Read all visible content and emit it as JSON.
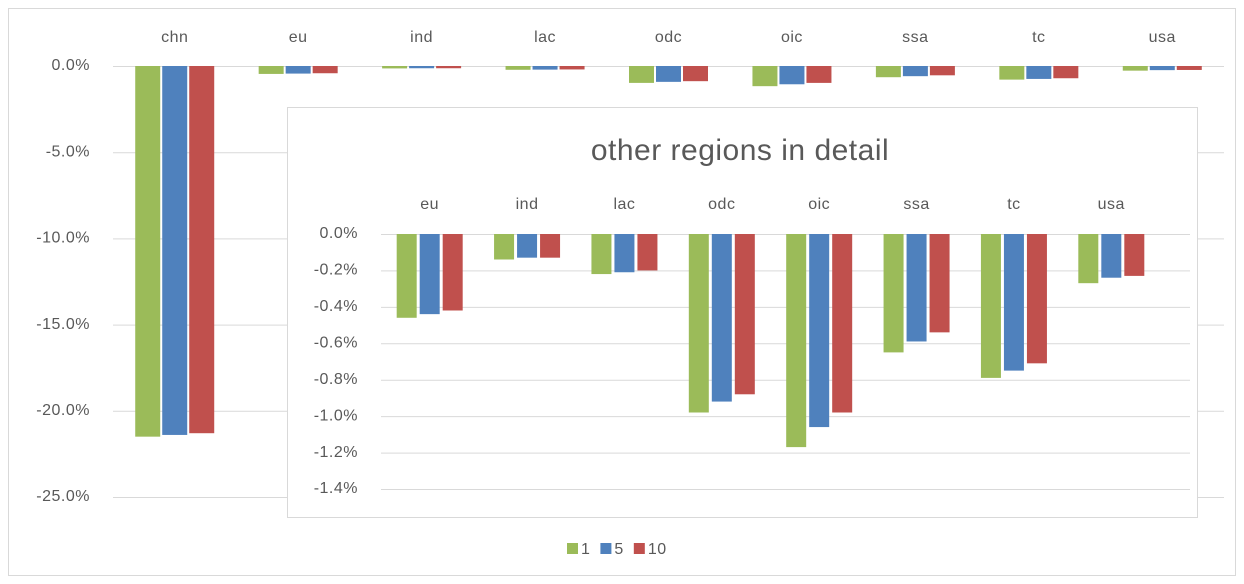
{
  "chart_data": [
    {
      "type": "bar",
      "categories": [
        "chn",
        "eu",
        "ind",
        "lac",
        "odc",
        "oic",
        "ssa",
        "tc",
        "usa"
      ],
      "series": [
        {
          "name": "1",
          "color": "#9bbb59",
          "values": [
            -21.5,
            -0.46,
            -0.14,
            -0.22,
            -0.98,
            -1.17,
            -0.65,
            -0.79,
            -0.27
          ]
        },
        {
          "name": "5",
          "color": "#4f81bd",
          "values": [
            -21.4,
            -0.44,
            -0.13,
            -0.21,
            -0.92,
            -1.06,
            -0.59,
            -0.75,
            -0.24
          ]
        },
        {
          "name": "10",
          "color": "#c0504d",
          "values": [
            -21.3,
            -0.42,
            -0.13,
            -0.2,
            -0.88,
            -0.98,
            -0.54,
            -0.71,
            -0.23
          ]
        }
      ],
      "ylim": [
        -25,
        0
      ],
      "yticks": [
        {
          "value": 0,
          "label": "0.0%"
        },
        {
          "value": -5,
          "label": "-5.0%"
        },
        {
          "value": -10,
          "label": "-10.0%"
        },
        {
          "value": -15,
          "label": "-15.0%"
        },
        {
          "value": -20,
          "label": "-20.0%"
        },
        {
          "value": -25,
          "label": "-25.0%"
        }
      ],
      "grid": true,
      "legend": "bottom"
    },
    {
      "type": "bar",
      "title": "other regions in detail",
      "categories": [
        "eu",
        "ind",
        "lac",
        "odc",
        "oic",
        "ssa",
        "tc",
        "usa"
      ],
      "series": [
        {
          "name": "1",
          "color": "#9bbb59",
          "values": [
            -0.46,
            -0.14,
            -0.22,
            -0.98,
            -1.17,
            -0.65,
            -0.79,
            -0.27
          ]
        },
        {
          "name": "5",
          "color": "#4f81bd",
          "values": [
            -0.44,
            -0.13,
            -0.21,
            -0.92,
            -1.06,
            -0.59,
            -0.75,
            -0.24
          ]
        },
        {
          "name": "10",
          "color": "#c0504d",
          "values": [
            -0.42,
            -0.13,
            -0.2,
            -0.88,
            -0.98,
            -0.54,
            -0.71,
            -0.23
          ]
        }
      ],
      "ylim": [
        -1.4,
        0
      ],
      "yticks": [
        {
          "value": 0,
          "label": "0.0%"
        },
        {
          "value": -0.2,
          "label": "-0.2%"
        },
        {
          "value": -0.4,
          "label": "-0.4%"
        },
        {
          "value": -0.6,
          "label": "-0.6%"
        },
        {
          "value": -0.8,
          "label": "-0.8%"
        },
        {
          "value": -1,
          "label": "-1.0%"
        },
        {
          "value": -1.2,
          "label": "-1.2%"
        },
        {
          "value": -1.4,
          "label": "-1.4%"
        }
      ],
      "grid": true
    }
  ]
}
